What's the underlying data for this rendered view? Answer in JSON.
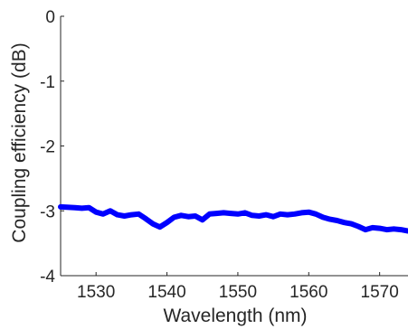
{
  "chart_data": {
    "type": "line",
    "title": "",
    "xlabel": "Wavelength (nm)",
    "ylabel": "Coupling efficiency (dB)",
    "xlim": [
      1525,
      1574
    ],
    "ylim": [
      -4,
      0
    ],
    "x_ticks": [
      1530,
      1540,
      1550,
      1560,
      1570
    ],
    "y_ticks": [
      0,
      -1,
      -2,
      -3,
      -4
    ],
    "grid": false,
    "legend": "none",
    "series": [
      {
        "color": "#0000ff",
        "x": [
          1525,
          1527,
          1528,
          1529,
          1530,
          1531,
          1532,
          1533,
          1534,
          1535,
          1536,
          1537,
          1538,
          1539,
          1540,
          1541,
          1542,
          1543,
          1544,
          1545,
          1546,
          1547,
          1548,
          1549,
          1550,
          1551,
          1552,
          1553,
          1554,
          1555,
          1556,
          1557,
          1558,
          1559,
          1560,
          1561,
          1562,
          1563,
          1564,
          1565,
          1566,
          1567,
          1568,
          1569,
          1570,
          1571,
          1572,
          1573,
          1574
        ],
        "y": [
          -2.94,
          -2.95,
          -2.96,
          -2.95,
          -3.02,
          -3.05,
          -3.0,
          -3.06,
          -3.08,
          -3.06,
          -3.05,
          -3.12,
          -3.2,
          -3.25,
          -3.18,
          -3.1,
          -3.07,
          -3.09,
          -3.08,
          -3.14,
          -3.05,
          -3.04,
          -3.03,
          -3.04,
          -3.05,
          -3.03,
          -3.07,
          -3.08,
          -3.06,
          -3.09,
          -3.05,
          -3.06,
          -3.05,
          -3.03,
          -3.02,
          -3.05,
          -3.1,
          -3.13,
          -3.15,
          -3.18,
          -3.2,
          -3.24,
          -3.29,
          -3.26,
          -3.27,
          -3.29,
          -3.28,
          -3.29,
          -3.31
        ]
      }
    ]
  }
}
